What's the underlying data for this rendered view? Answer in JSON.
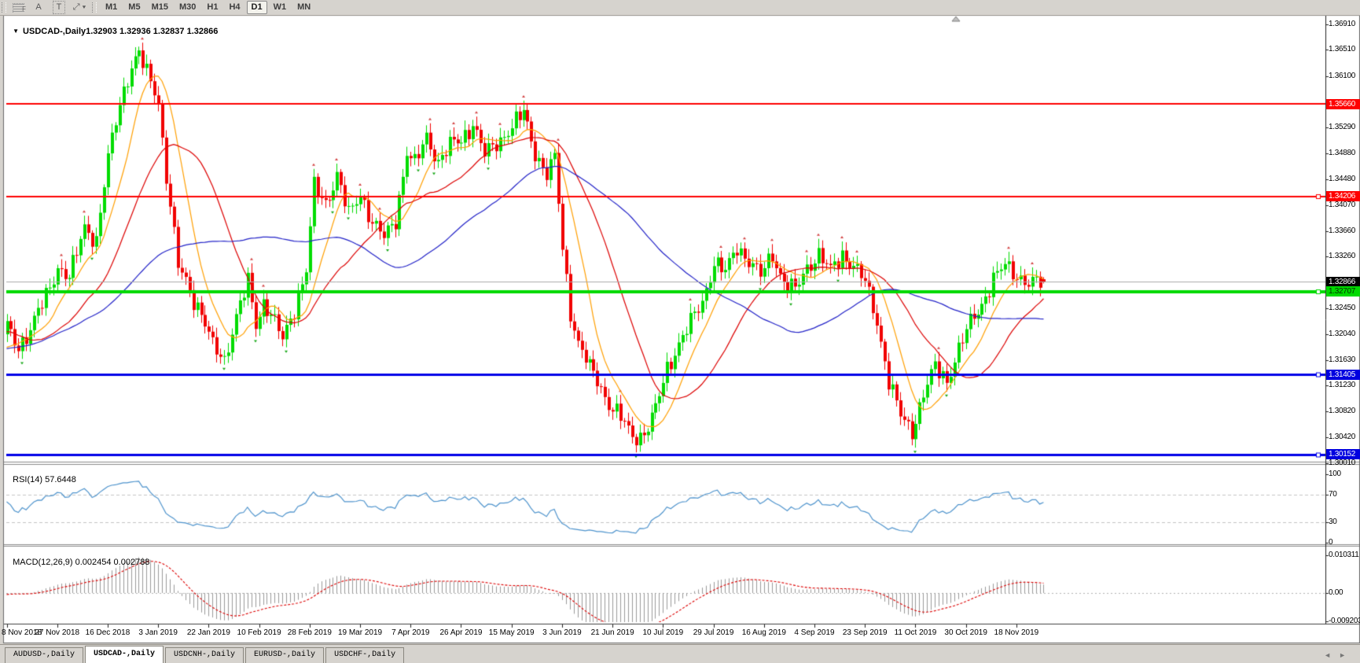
{
  "toolbar": {
    "tool_icons": [
      {
        "name": "indicator-grid-icon",
        "glyph": "F"
      },
      {
        "name": "text-label-icon",
        "glyph": "A"
      },
      {
        "name": "text-box-icon",
        "glyph": "T"
      },
      {
        "name": "cursor-tool-icon",
        "glyph": "⤢ ▾"
      }
    ],
    "timeframes": [
      "M1",
      "M5",
      "M15",
      "M30",
      "H1",
      "H4",
      "D1",
      "W1",
      "MN"
    ],
    "active_timeframe": "D1"
  },
  "chart": {
    "symbol": "USDCAD-,Daily",
    "ohlc_values": "1.32903 1.32936 1.32837 1.32866"
  },
  "price_axis": {
    "ticks": [
      "1.36910",
      "1.36510",
      "1.36100",
      "1.35290",
      "1.34880",
      "1.34480",
      "1.34070",
      "1.33660",
      "1.33260",
      "1.32450",
      "1.32040",
      "1.31630",
      "1.31230",
      "1.30820",
      "1.30420",
      "1.30010"
    ],
    "badges": [
      {
        "label": "1.32866",
        "price": 1.32866,
        "bg": "#000000",
        "fg": "#ffffff"
      },
      {
        "label": "1.35660",
        "price": 1.3566,
        "bg": "#fe0000",
        "fg": "#ffffff"
      },
      {
        "label": "1.34206",
        "price": 1.34206,
        "bg": "#fe0000",
        "fg": "#ffffff"
      },
      {
        "label": "1.32707",
        "price": 1.32707,
        "bg": "#00d900",
        "fg": "#003300"
      },
      {
        "label": "1.31405",
        "price": 1.31405,
        "bg": "#0000df",
        "fg": "#ffffff"
      },
      {
        "label": "1.30152",
        "price": 1.30152,
        "bg": "#0000df",
        "fg": "#ffffff"
      }
    ]
  },
  "rsi": {
    "label": "RSI(14)",
    "value_label": "57.6448",
    "ticks": [
      "100",
      "70",
      "30",
      "0"
    ],
    "levels": [
      70,
      30
    ]
  },
  "macd": {
    "label": "MACD(12,26,9)",
    "values_label": "0.002454 0.002788",
    "ticks": [
      "0.010311",
      "0.00",
      "-0.009203"
    ]
  },
  "time_axis": {
    "labels": [
      "8 Nov 2018",
      "27 Nov 2018",
      "16 Dec 2018",
      "3 Jan 2019",
      "22 Jan 2019",
      "10 Feb 2019",
      "28 Feb 2019",
      "19 Mar 2019",
      "7 Apr 2019",
      "26 Apr 2019",
      "15 May 2019",
      "3 Jun 2019",
      "21 Jun 2019",
      "10 Jul 2019",
      "29 Jul 2019",
      "16 Aug 2019",
      "4 Sep 2019",
      "23 Sep 2019",
      "11 Oct 2019",
      "30 Oct 2019",
      "18 Nov 2019"
    ]
  },
  "tabs": [
    {
      "label": "AUDUSD-,Daily",
      "active": false
    },
    {
      "label": "USDCAD-,Daily",
      "active": true
    },
    {
      "label": "USDCNH-,Daily",
      "active": false
    },
    {
      "label": "EURUSD-,Daily",
      "active": false
    },
    {
      "label": "USDCHF-,Daily",
      "active": false
    }
  ],
  "tabs_scroll": {
    "left": "◄",
    "right": "►"
  },
  "chart_data": {
    "type": "candlestick",
    "symbol": "USDCAD-",
    "timeframe": "Daily",
    "title": "USDCAD-,Daily",
    "current_bar": {
      "open": 1.32903,
      "high": 1.32936,
      "low": 1.32837,
      "close": 1.32866
    },
    "visible_bars": 268,
    "bars_per_time_label": 13,
    "price_range": {
      "top": 1.3691,
      "bottom": 1.3001
    },
    "horizontal_lines": [
      {
        "price": 1.3566,
        "color": "#fe0000",
        "width": 2,
        "marker": false,
        "kind": "resistance"
      },
      {
        "price": 1.34206,
        "color": "#fe0000",
        "width": 2,
        "marker": true,
        "kind": "resistance"
      },
      {
        "price": 1.32707,
        "color": "#00d900",
        "width": 4,
        "marker": true,
        "kind": "support"
      },
      {
        "price": 1.31405,
        "color": "#0000e8",
        "width": 3,
        "marker": true,
        "kind": "support"
      },
      {
        "price": 1.30152,
        "color": "#0000e8",
        "width": 3,
        "marker": true,
        "kind": "support"
      },
      {
        "price": 1.32866,
        "color": "#aaaaaa",
        "width": 1,
        "marker": false,
        "kind": "current-price"
      }
    ],
    "moving_averages": [
      {
        "period": 10,
        "color": "#ff9f00"
      },
      {
        "period": 25,
        "color": "#dd0000"
      },
      {
        "period": 60,
        "color": "#2323c8"
      }
    ],
    "rsi": {
      "period": 14,
      "color": "#4f94cd",
      "current": 57.6448,
      "levels": [
        70,
        30
      ]
    },
    "macd": {
      "fast": 12,
      "slow": 26,
      "signal": 9,
      "current_macd": 0.002454,
      "current_signal": 0.002788,
      "histogram_color": "#9a9a9a",
      "signal_color": "#dd0000",
      "axis_max": 0.010311,
      "axis_min": -0.009203
    },
    "candle_colors": {
      "up": "#00dc00",
      "down": "#f10000"
    },
    "close_waypoints": [
      [
        -60,
        1.315
      ],
      [
        -50,
        1.311
      ],
      [
        -40,
        1.3155
      ],
      [
        -30,
        1.3215
      ],
      [
        -20,
        1.326
      ],
      [
        -12,
        1.319
      ],
      [
        -6,
        1.316
      ],
      [
        0,
        1.3215
      ],
      [
        3,
        1.3185
      ],
      [
        6,
        1.321
      ],
      [
        10,
        1.3265
      ],
      [
        13,
        1.331
      ],
      [
        16,
        1.329
      ],
      [
        20,
        1.3375
      ],
      [
        23,
        1.335
      ],
      [
        26,
        1.348
      ],
      [
        29,
        1.357
      ],
      [
        32,
        1.3625
      ],
      [
        34,
        1.3642
      ],
      [
        36,
        1.3615
      ],
      [
        38,
        1.359
      ],
      [
        39,
        1.357
      ],
      [
        41,
        1.345
      ],
      [
        44,
        1.331
      ],
      [
        46,
        1.329
      ],
      [
        48,
        1.326
      ],
      [
        50,
        1.3235
      ],
      [
        53,
        1.3185
      ],
      [
        56,
        1.3165
      ],
      [
        58,
        1.321
      ],
      [
        60,
        1.325
      ],
      [
        62,
        1.3285
      ],
      [
        64,
        1.322
      ],
      [
        66,
        1.3255
      ],
      [
        68,
        1.3235
      ],
      [
        71,
        1.3195
      ],
      [
        74,
        1.3245
      ],
      [
        77,
        1.3305
      ],
      [
        79,
        1.3435
      ],
      [
        82,
        1.341
      ],
      [
        85,
        1.3455
      ],
      [
        88,
        1.339
      ],
      [
        91,
        1.3425
      ],
      [
        94,
        1.338
      ],
      [
        97,
        1.3355
      ],
      [
        100,
        1.3385
      ],
      [
        103,
        1.349
      ],
      [
        105,
        1.347
      ],
      [
        108,
        1.3515
      ],
      [
        111,
        1.3475
      ],
      [
        114,
        1.35
      ],
      [
        117,
        1.351
      ],
      [
        120,
        1.3535
      ],
      [
        123,
        1.3485
      ],
      [
        126,
        1.3505
      ],
      [
        130,
        1.353
      ],
      [
        133,
        1.3552
      ],
      [
        136,
        1.349
      ],
      [
        139,
        1.3455
      ],
      [
        141,
        1.348
      ],
      [
        143,
        1.334
      ],
      [
        145,
        1.324
      ],
      [
        147,
        1.319
      ],
      [
        150,
        1.315
      ],
      [
        152,
        1.3132
      ],
      [
        155,
        1.3095
      ],
      [
        158,
        1.3072
      ],
      [
        161,
        1.3042
      ],
      [
        164,
        1.3048
      ],
      [
        167,
        1.3085
      ],
      [
        170,
        1.315
      ],
      [
        173,
        1.319
      ],
      [
        176,
        1.3222
      ],
      [
        179,
        1.3255
      ],
      [
        182,
        1.3318
      ],
      [
        185,
        1.33
      ],
      [
        188,
        1.3342
      ],
      [
        191,
        1.332
      ],
      [
        194,
        1.3295
      ],
      [
        197,
        1.333
      ],
      [
        200,
        1.3285
      ],
      [
        203,
        1.3272
      ],
      [
        206,
        1.331
      ],
      [
        209,
        1.333
      ],
      [
        212,
        1.3302
      ],
      [
        215,
        1.333
      ],
      [
        218,
        1.3312
      ],
      [
        221,
        1.3285
      ],
      [
        224,
        1.3225
      ],
      [
        227,
        1.313
      ],
      [
        230,
        1.3075
      ],
      [
        233,
        1.3052
      ],
      [
        236,
        1.311
      ],
      [
        239,
        1.3152
      ],
      [
        242,
        1.3132
      ],
      [
        245,
        1.318
      ],
      [
        248,
        1.3222
      ],
      [
        251,
        1.3252
      ],
      [
        254,
        1.329
      ],
      [
        257,
        1.3312
      ],
      [
        260,
        1.3298
      ],
      [
        263,
        1.3282
      ],
      [
        267,
        1.32866
      ]
    ]
  }
}
